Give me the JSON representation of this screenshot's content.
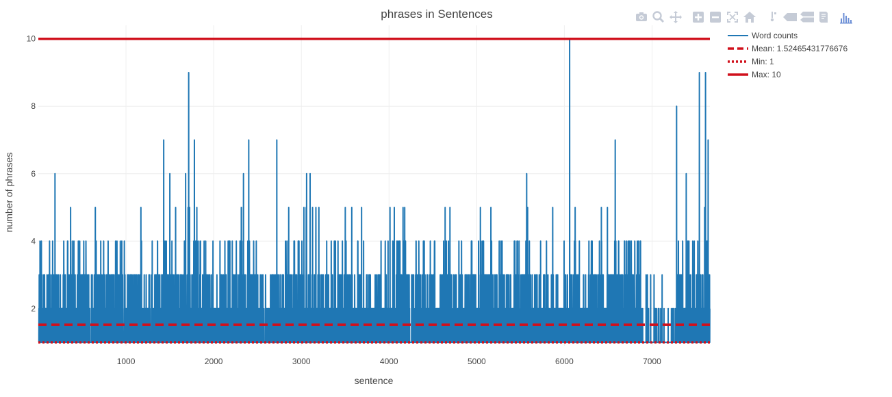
{
  "chart_data": {
    "type": "line",
    "title": "phrases in Sentences",
    "xlabel": "sentence",
    "ylabel": "number of phrases",
    "xlim": [
      0,
      7660
    ],
    "ylim": [
      0.9,
      10.4
    ],
    "x_ticks": [
      1000,
      2000,
      3000,
      4000,
      5000,
      6000,
      7000
    ],
    "y_ticks": [
      2,
      4,
      6,
      8,
      10
    ],
    "grid": true,
    "legend_placement": "top-right",
    "series": [
      {
        "name": "Word counts",
        "color": "#1f77b4",
        "n_points": 7660,
        "min": 1,
        "max": 10,
        "mean": 1.52465431776676,
        "low_activity_ranges": [
          [
            6870,
            7280
          ]
        ],
        "peaks": [
          {
            "x": 190,
            "y": 6
          },
          {
            "x": 1170,
            "y": 5
          },
          {
            "x": 1430,
            "y": 7
          },
          {
            "x": 1500,
            "y": 6
          },
          {
            "x": 1680,
            "y": 6
          },
          {
            "x": 1715,
            "y": 9
          },
          {
            "x": 1780,
            "y": 7
          },
          {
            "x": 2340,
            "y": 6
          },
          {
            "x": 2400,
            "y": 7
          },
          {
            "x": 2720,
            "y": 7
          },
          {
            "x": 3060,
            "y": 6
          },
          {
            "x": 3100,
            "y": 6
          },
          {
            "x": 4060,
            "y": 5
          },
          {
            "x": 4640,
            "y": 5
          },
          {
            "x": 5570,
            "y": 6
          },
          {
            "x": 6060,
            "y": 10
          },
          {
            "x": 6580,
            "y": 7
          },
          {
            "x": 7280,
            "y": 8
          },
          {
            "x": 7390,
            "y": 6
          },
          {
            "x": 7540,
            "y": 9
          },
          {
            "x": 7610,
            "y": 9
          },
          {
            "x": 7640,
            "y": 7
          }
        ]
      },
      {
        "name": "Mean:  1.52465431776676",
        "color": "#d0101c",
        "dash": "dash",
        "y": 1.52465431776676
      },
      {
        "name": "Min:  1",
        "color": "#d0101c",
        "dash": "dot",
        "y": 1
      },
      {
        "name": "Max:  10",
        "color": "#d0101c",
        "dash": "solid",
        "y": 10
      }
    ]
  },
  "toolbar": {
    "buttons": [
      {
        "name": "camera-icon"
      },
      {
        "name": "zoom-icon"
      },
      {
        "name": "pan-icon"
      },
      {
        "name": "zoom-in-icon"
      },
      {
        "name": "zoom-out-icon"
      },
      {
        "name": "autoscale-icon"
      },
      {
        "name": "home-icon"
      },
      {
        "name": "spike-lines-icon"
      },
      {
        "name": "hover-closest-icon"
      },
      {
        "name": "hover-compare-icon"
      },
      {
        "name": "edit-icon"
      },
      {
        "name": "plotly-logo-icon"
      }
    ],
    "icon_color": "#c5cbd6",
    "logo_color": "#6c8fd6"
  }
}
